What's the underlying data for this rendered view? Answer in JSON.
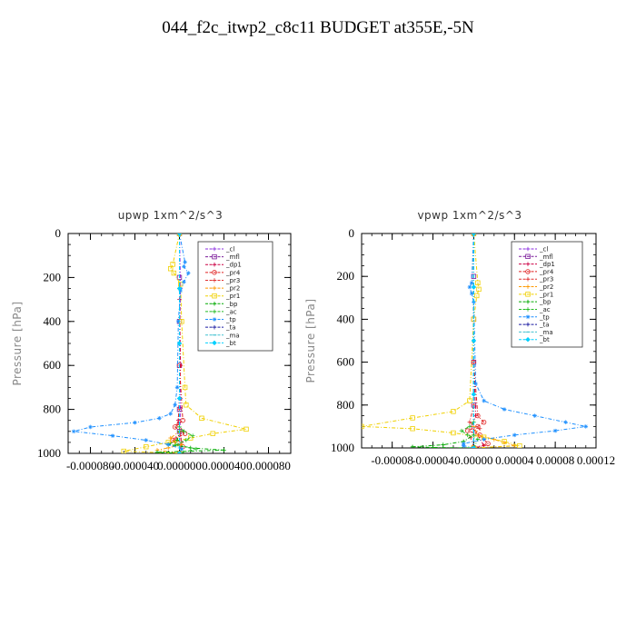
{
  "figure": {
    "suptitle": "044_f2c_itwp2_c8c11  BUDGET at355E,-5N"
  },
  "chart_data": [
    {
      "type": "line",
      "title": "upwp   1xm^2/s^3",
      "ylabel": "Pressure [hPa]",
      "xlim": [
        -0.0001,
        0.0001
      ],
      "ylim": [
        1000,
        0
      ],
      "xticks": [
        -8e-05,
        -4e-05,
        0.0,
        4e-05,
        8e-05
      ],
      "xtick_labels": [
        "-0.000080",
        "-0.000040",
        "0.000000",
        "0.000040",
        "0.000080"
      ],
      "yticks": [
        0,
        200,
        400,
        600,
        800,
        1000
      ],
      "ytick_labels": [
        "0",
        "200",
        "400",
        "600",
        "800",
        "1000"
      ],
      "legend": "top-right",
      "series": [
        {
          "name": "_cl",
          "color": "#8a2be2",
          "marker": "plus",
          "x": [
            0,
            1e-06,
            0,
            1e-06,
            0
          ],
          "y": [
            0,
            250,
            500,
            750,
            1000
          ]
        },
        {
          "name": "_mfl",
          "color": "#7a1a9a",
          "marker": "square",
          "x": [
            0,
            0,
            0,
            0,
            0,
            0,
            0
          ],
          "y": [
            0,
            200,
            400,
            600,
            800,
            900,
            1000
          ]
        },
        {
          "name": "_dp1",
          "color": "#cc0044",
          "marker": "plus",
          "x": [
            0,
            0,
            1e-06,
            -1e-06,
            2e-06,
            0
          ],
          "y": [
            0,
            300,
            600,
            850,
            950,
            1000
          ]
        },
        {
          "name": "_pr4",
          "color": "#e02020",
          "marker": "circle",
          "x": [
            0,
            0,
            3e-06,
            -4e-06,
            5e-06,
            -6e-06,
            3e-06,
            0
          ],
          "y": [
            0,
            600,
            850,
            880,
            910,
            940,
            970,
            1000
          ]
        },
        {
          "name": "_pr3",
          "color": "#e03030",
          "marker": "plus",
          "x": [
            0,
            0,
            -2e-06,
            4e-06,
            -3e-06,
            2e-06,
            0
          ],
          "y": [
            0,
            800,
            870,
            900,
            930,
            960,
            1000
          ]
        },
        {
          "name": "_pr2",
          "color": "#ff9900",
          "marker": "plus",
          "x": [
            0,
            0,
            -8e-06,
            -4e-06,
            2e-06,
            -1e-05,
            -2e-05,
            0
          ],
          "y": [
            0,
            900,
            930,
            950,
            960,
            975,
            985,
            1000
          ]
        },
        {
          "name": "_pr1",
          "color": "#f0d000",
          "marker": "square",
          "x": [
            0,
            -6e-06,
            -8e-06,
            -5e-06,
            1e-06,
            2e-06,
            5e-06,
            6e-06,
            2e-05,
            6e-05,
            3e-05,
            1e-05,
            -1e-05,
            -3e-05,
            -5e-05,
            0
          ],
          "y": [
            0,
            140,
            160,
            180,
            230,
            400,
            700,
            780,
            840,
            890,
            910,
            930,
            950,
            970,
            990,
            1000
          ]
        },
        {
          "name": "_bp",
          "color": "#00aa00",
          "marker": "plus",
          "x": [
            0,
            0,
            -2e-06,
            -1e-05,
            1e-05,
            4e-05,
            -2e-05,
            0
          ],
          "y": [
            0,
            900,
            940,
            960,
            975,
            985,
            995,
            1000
          ]
        },
        {
          "name": "_ac",
          "color": "#22bb22",
          "marker": "plus",
          "x": [
            0,
            0,
            4e-06,
            1.2e-05,
            6e-06,
            -3e-06,
            1.5e-05,
            0
          ],
          "y": [
            0,
            880,
            900,
            920,
            940,
            960,
            980,
            1000
          ]
        },
        {
          "name": "_tp",
          "color": "#1e90ff",
          "marker": "star",
          "x": [
            0,
            5e-06,
            4e-06,
            8e-06,
            4e-06,
            1e-06,
            -1e-06,
            -2e-06,
            -4e-06,
            -8e-06,
            -1.8e-05,
            -4e-05,
            -8e-05,
            -9.5e-05,
            -6e-05,
            -3e-05,
            -1e-05,
            2e-06,
            0
          ],
          "y": [
            0,
            130,
            150,
            180,
            220,
            260,
            400,
            700,
            780,
            820,
            840,
            860,
            880,
            900,
            920,
            940,
            960,
            980,
            1000
          ]
        },
        {
          "name": "_ta",
          "color": "#1a1aa0",
          "marker": "plus",
          "x": [
            0,
            0,
            0,
            0,
            0
          ],
          "y": [
            0,
            250,
            500,
            750,
            1000
          ]
        },
        {
          "name": "_ma",
          "color": "#40c0d0",
          "marker": "dash",
          "x": [
            0,
            0,
            0,
            0,
            0
          ],
          "y": [
            0,
            250,
            500,
            750,
            1000
          ]
        },
        {
          "name": "_bt",
          "color": "#00d0ff",
          "marker": "diamond",
          "x": [
            0,
            0,
            0,
            0,
            0
          ],
          "y": [
            0,
            250,
            500,
            750,
            1000
          ]
        }
      ]
    },
    {
      "type": "line",
      "title": "vpwp   1xm^2/s^3",
      "ylabel": "Pressure [hPa]",
      "xlim": [
        -0.00011,
        0.00012
      ],
      "ylim": [
        1000,
        0
      ],
      "xticks": [
        -8e-05,
        -4e-05,
        0.0,
        4e-05,
        8e-05,
        0.00012
      ],
      "xtick_labels": [
        "-0.00008",
        "-0.00004",
        "0.00000",
        "0.00004",
        "0.00008",
        "0.00012"
      ],
      "yticks": [
        0,
        200,
        400,
        600,
        800,
        1000
      ],
      "ytick_labels": [
        "0",
        "200",
        "400",
        "600",
        "800",
        "1000"
      ],
      "legend": "top-right",
      "series": [
        {
          "name": "_cl",
          "color": "#8a2be2",
          "marker": "plus",
          "x": [
            0,
            0,
            0,
            0,
            0
          ],
          "y": [
            0,
            250,
            500,
            750,
            1000
          ]
        },
        {
          "name": "_mfl",
          "color": "#7a1a9a",
          "marker": "square",
          "x": [
            0,
            0,
            0,
            0,
            0,
            0
          ],
          "y": [
            0,
            200,
            400,
            600,
            800,
            1000
          ]
        },
        {
          "name": "_dp1",
          "color": "#cc0044",
          "marker": "plus",
          "x": [
            0,
            0,
            2e-06,
            -2e-06,
            4e-06,
            1e-05,
            0
          ],
          "y": [
            0,
            600,
            850,
            900,
            940,
            990,
            1000
          ]
        },
        {
          "name": "_pr4",
          "color": "#e02020",
          "marker": "circle",
          "x": [
            0,
            0,
            4e-06,
            1e-05,
            4e-06,
            -6e-06,
            6e-06,
            1.4e-05,
            0
          ],
          "y": [
            0,
            600,
            850,
            880,
            900,
            920,
            940,
            980,
            1000
          ]
        },
        {
          "name": "_pr3",
          "color": "#e03030",
          "marker": "plus",
          "x": [
            0,
            0,
            -4e-06,
            6e-06,
            -3e-06,
            0
          ],
          "y": [
            0,
            800,
            880,
            910,
            950,
            1000
          ]
        },
        {
          "name": "_pr2",
          "color": "#ff9900",
          "marker": "plus",
          "x": [
            0,
            0,
            4e-06,
            2e-05,
            3e-05,
            4e-05,
            0
          ],
          "y": [
            0,
            900,
            940,
            960,
            975,
            990,
            1000
          ]
        },
        {
          "name": "_pr1",
          "color": "#f0d000",
          "marker": "square",
          "x": [
            0,
            4e-06,
            5e-06,
            3e-06,
            0,
            -4e-06,
            -2e-05,
            -6e-05,
            -0.00011,
            -6e-05,
            -2e-05,
            1e-05,
            3e-05,
            4.5e-05,
            0
          ],
          "y": [
            0,
            230,
            260,
            290,
            400,
            780,
            830,
            860,
            900,
            910,
            930,
            950,
            970,
            990,
            1000
          ]
        },
        {
          "name": "_bp",
          "color": "#00aa00",
          "marker": "plus",
          "x": [
            0,
            0,
            -1e-05,
            -3e-05,
            -6e-05,
            -4e-05,
            0
          ],
          "y": [
            0,
            940,
            970,
            985,
            995,
            998,
            1000
          ]
        },
        {
          "name": "_ac",
          "color": "#22bb22",
          "marker": "plus",
          "x": [
            0,
            0,
            -4e-06,
            -1.2e-05,
            -6e-06,
            4e-06,
            0
          ],
          "y": [
            0,
            880,
            900,
            920,
            940,
            960,
            1000
          ]
        },
        {
          "name": "_tp",
          "color": "#1e90ff",
          "marker": "star",
          "x": [
            0,
            -2e-06,
            -4e-06,
            -2e-06,
            0,
            2e-06,
            1e-05,
            3e-05,
            6e-05,
            9e-05,
            0.00011,
            8e-05,
            4e-05,
            1e-05,
            -1e-05,
            -1e-05,
            0
          ],
          "y": [
            0,
            230,
            250,
            280,
            320,
            700,
            780,
            820,
            850,
            880,
            900,
            920,
            940,
            960,
            980,
            990,
            1000
          ]
        },
        {
          "name": "_ta",
          "color": "#1a1aa0",
          "marker": "plus",
          "x": [
            0,
            0,
            0,
            0,
            0
          ],
          "y": [
            0,
            250,
            500,
            750,
            1000
          ]
        },
        {
          "name": "_ma",
          "color": "#40c0d0",
          "marker": "dash",
          "x": [
            0,
            0,
            0,
            0,
            0
          ],
          "y": [
            0,
            250,
            500,
            750,
            1000
          ]
        },
        {
          "name": "_bt",
          "color": "#00d0ff",
          "marker": "diamond",
          "x": [
            0,
            0,
            0,
            0,
            0
          ],
          "y": [
            0,
            250,
            500,
            750,
            1000
          ]
        }
      ]
    }
  ]
}
